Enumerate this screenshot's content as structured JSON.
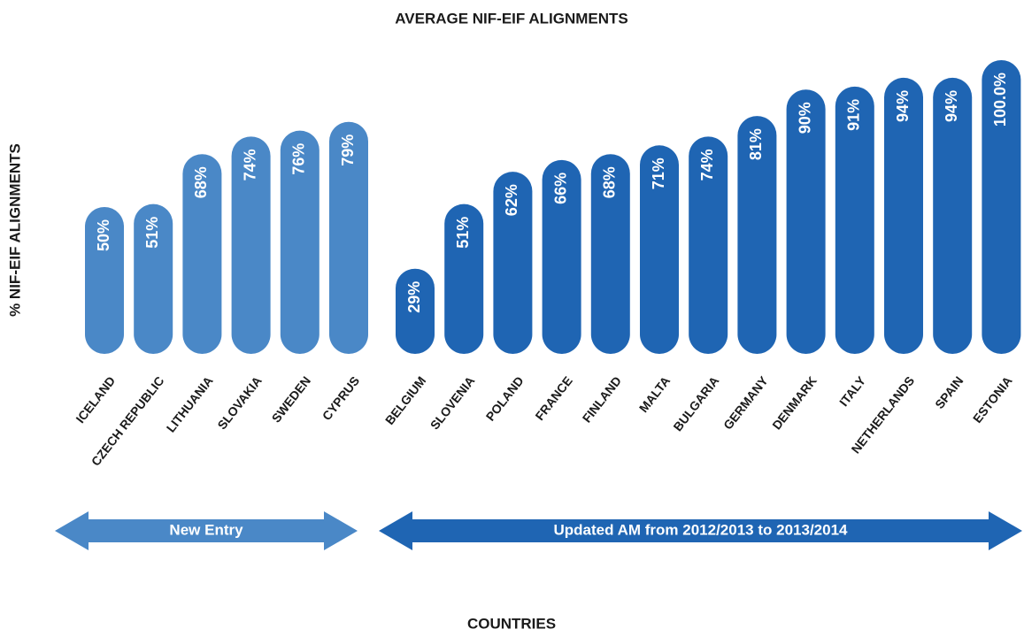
{
  "chart_data": {
    "type": "bar",
    "title": "AVERAGE NIF-EIF ALIGNMENTS",
    "ylabel": "% NIF-EIF ALIGNMENTS",
    "xlabel": "COUNTRIES",
    "groups": [
      {
        "name": "New Entry",
        "color": "#4a88c7",
        "categories": [
          "ICELAND",
          "CZECH REPUBLIC",
          "LITHUANIA",
          "SLOVAKIA",
          "SWEDEN",
          "CYPRUS"
        ],
        "values": [
          50,
          51,
          68,
          74,
          76,
          79
        ],
        "value_labels": [
          "50%",
          "51%",
          "68%",
          "74%",
          "76%",
          "79%"
        ]
      },
      {
        "name": "Updated AM from 2012/2013 to 2013/2014",
        "color": "#1f65b3",
        "categories": [
          "BELGIUM",
          "SLOVENIA",
          "POLAND",
          "FRANCE",
          "FINLAND",
          "MALTA",
          "BULGARIA",
          "GERMANY",
          "DENMARK",
          "ITALY",
          "NETHERLANDS",
          "SPAIN",
          "ESTONIA"
        ],
        "values": [
          29,
          51,
          62,
          66,
          68,
          71,
          74,
          81,
          90,
          91,
          94,
          94,
          100.0
        ],
        "value_labels": [
          "29%",
          "51%",
          "62%",
          "66%",
          "68%",
          "71%",
          "74%",
          "81%",
          "90%",
          "91%",
          "94%",
          "94%",
          "100.0%"
        ]
      }
    ]
  }
}
